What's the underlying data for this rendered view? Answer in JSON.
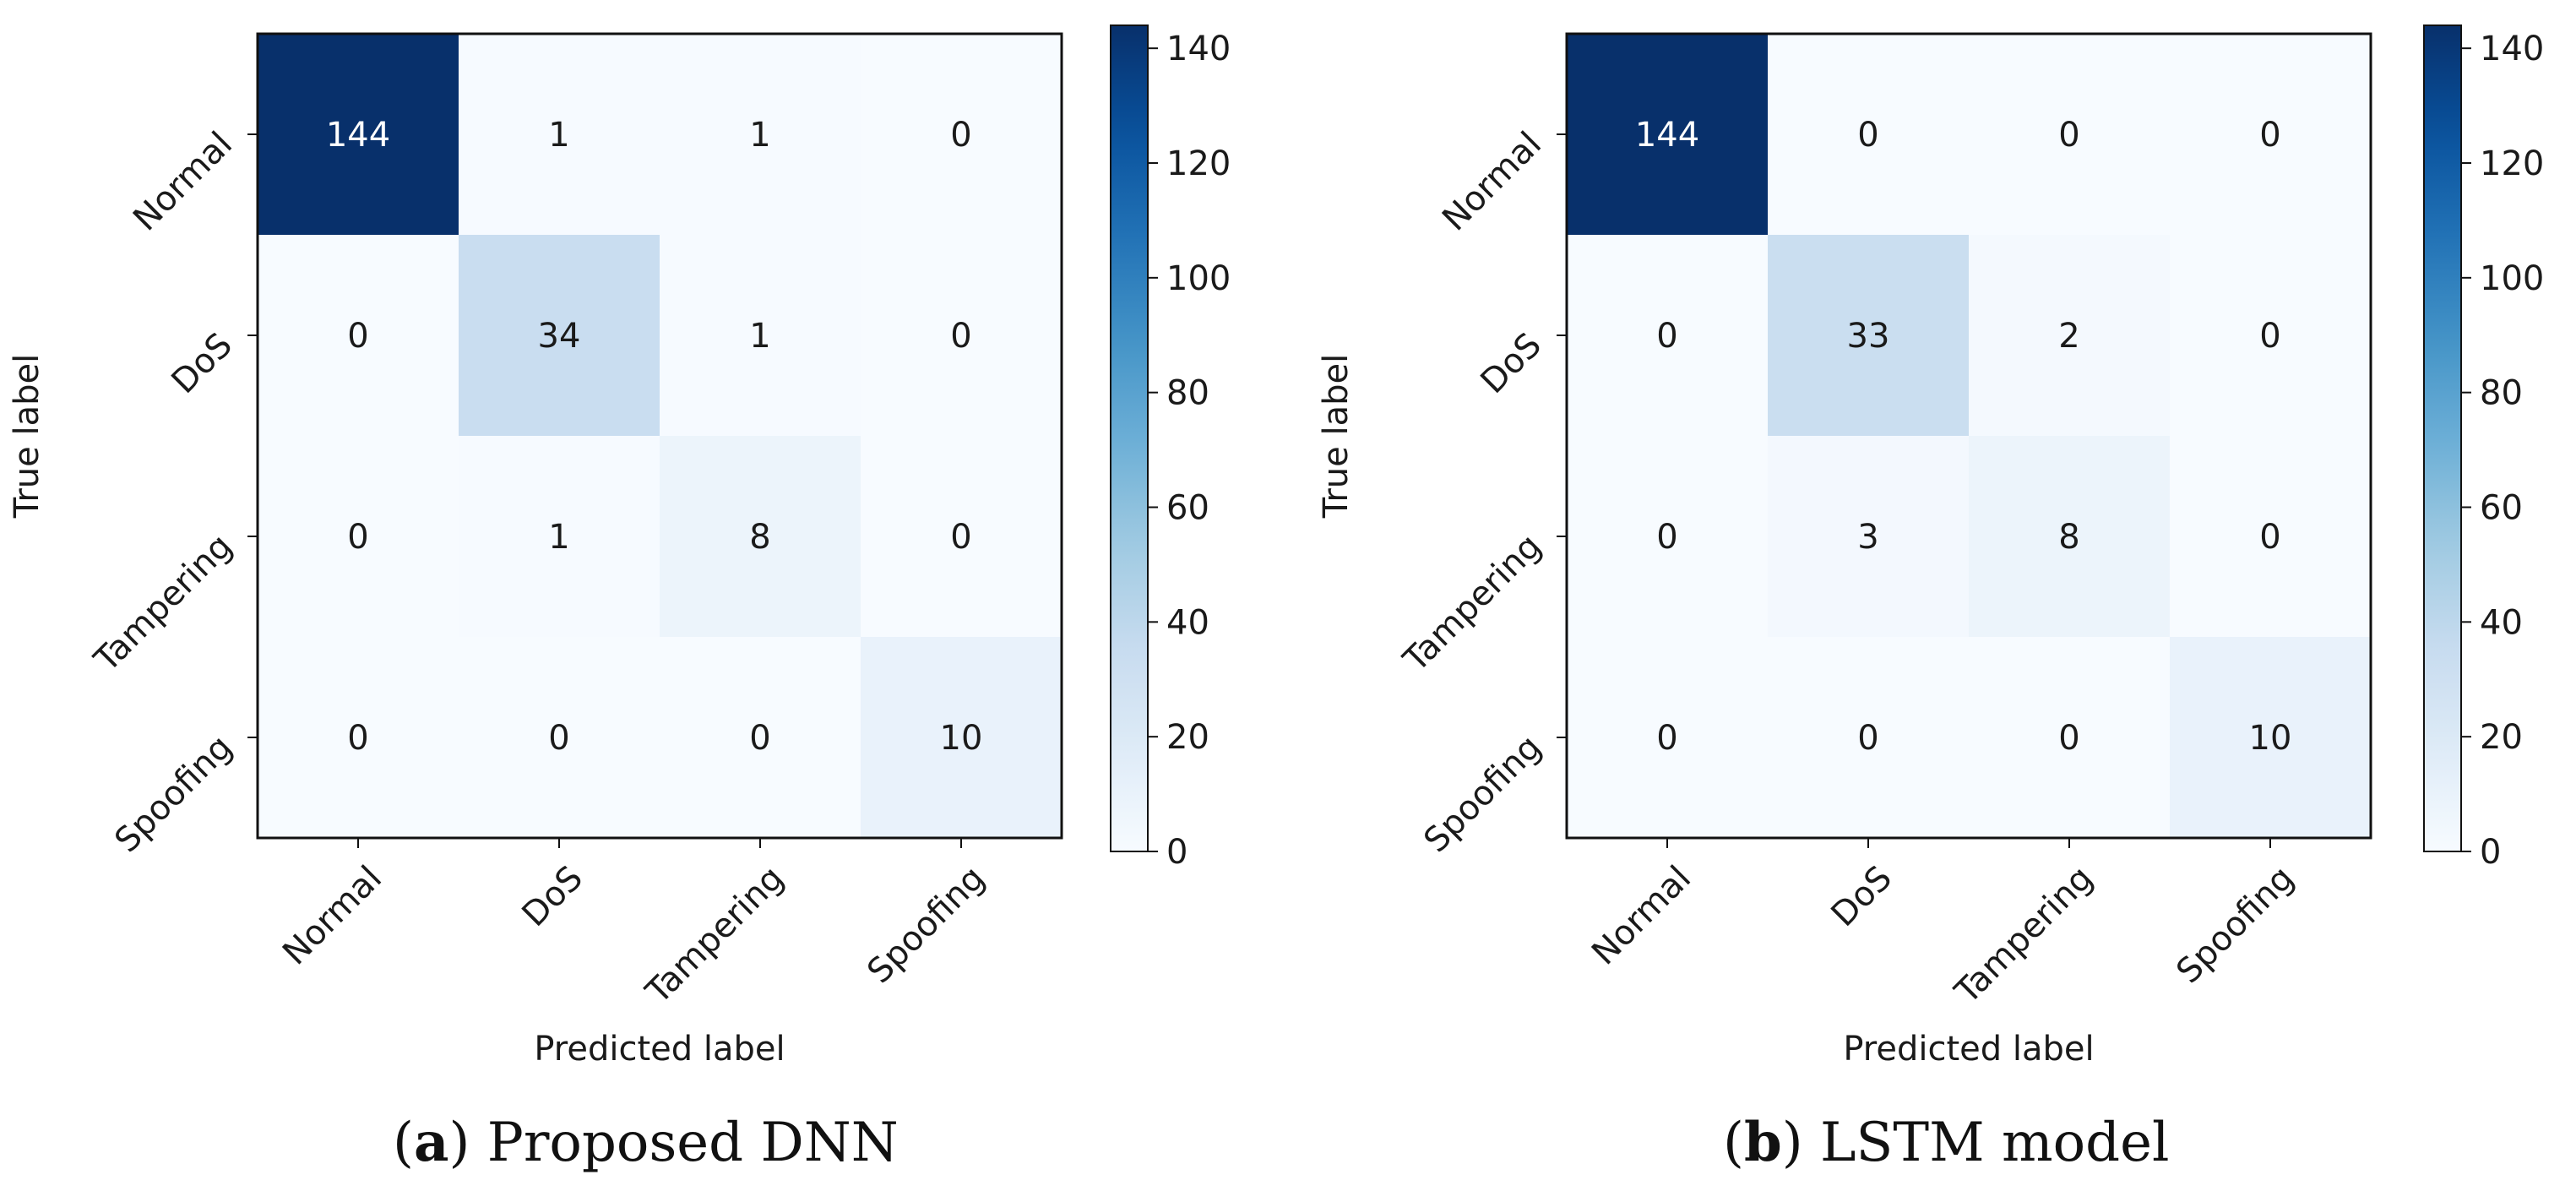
{
  "chart_data": [
    {
      "type": "heatmap",
      "panel_label": "a",
      "caption": "Proposed DNN",
      "xlabel": "Predicted label",
      "ylabel": "True label",
      "categories": [
        "Normal",
        "DoS",
        "Tampering",
        "Spoofing"
      ],
      "matrix": [
        [
          144,
          1,
          1,
          0
        ],
        [
          0,
          34,
          1,
          0
        ],
        [
          0,
          1,
          8,
          0
        ],
        [
          0,
          0,
          0,
          10
        ]
      ],
      "colorbar_ticks": [
        0,
        20,
        40,
        60,
        80,
        100,
        120,
        140
      ],
      "colorbar_range": [
        0,
        144
      ],
      "colormap": "Blues"
    },
    {
      "type": "heatmap",
      "panel_label": "b",
      "caption": "LSTM model",
      "xlabel": "Predicted label",
      "ylabel": "True label",
      "categories": [
        "Normal",
        "DoS",
        "Tampering",
        "Spoofing"
      ],
      "matrix": [
        [
          144,
          0,
          0,
          0
        ],
        [
          0,
          33,
          2,
          0
        ],
        [
          0,
          3,
          8,
          0
        ],
        [
          0,
          0,
          0,
          10
        ]
      ],
      "colorbar_ticks": [
        0,
        20,
        40,
        60,
        80,
        100,
        120,
        140
      ],
      "colorbar_range": [
        0,
        144
      ],
      "colormap": "Blues"
    }
  ]
}
